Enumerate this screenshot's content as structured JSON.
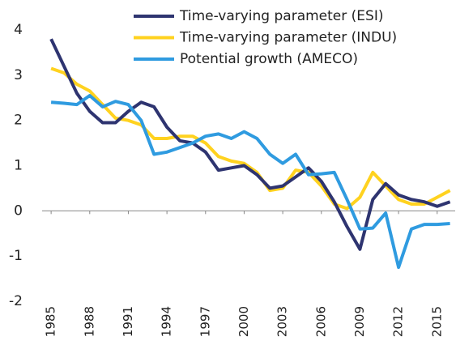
{
  "chart_data": {
    "type": "line",
    "x": [
      1985,
      1986,
      1987,
      1988,
      1989,
      1990,
      1991,
      1992,
      1993,
      1994,
      1995,
      1996,
      1997,
      1998,
      1999,
      2000,
      2001,
      2002,
      2003,
      2004,
      2005,
      2006,
      2007,
      2008,
      2009,
      2010,
      2011,
      2012,
      2013,
      2014,
      2015,
      2016
    ],
    "series": [
      {
        "name": "Time-varying parameter (ESI)",
        "color": "#2e3470",
        "values": [
          3.8,
          3.2,
          2.6,
          2.2,
          1.95,
          1.95,
          2.2,
          2.4,
          2.3,
          1.85,
          1.55,
          1.5,
          1.3,
          0.9,
          0.95,
          1.0,
          0.8,
          0.5,
          0.55,
          0.75,
          0.95,
          0.65,
          0.2,
          -0.35,
          -0.85,
          0.25,
          0.6,
          0.35,
          0.25,
          0.2,
          0.1,
          0.2
        ]
      },
      {
        "name": "Time-varying parameter (INDU)",
        "color": "#ffd21f",
        "values": [
          3.15,
          3.05,
          2.8,
          2.65,
          2.35,
          2.05,
          2.0,
          1.9,
          1.6,
          1.6,
          1.65,
          1.65,
          1.5,
          1.2,
          1.1,
          1.05,
          0.85,
          0.45,
          0.5,
          0.9,
          0.85,
          0.55,
          0.15,
          0.05,
          0.3,
          0.85,
          0.55,
          0.25,
          0.15,
          0.15,
          0.3,
          0.45
        ]
      },
      {
        "name": "Potential growth (AMECO)",
        "color": "#2f9be0",
        "values": [
          2.4,
          2.38,
          2.35,
          2.55,
          2.3,
          2.42,
          2.35,
          2.0,
          1.25,
          1.3,
          1.4,
          1.5,
          1.65,
          1.7,
          1.6,
          1.75,
          1.6,
          1.25,
          1.05,
          1.25,
          0.8,
          0.82,
          0.85,
          0.25,
          -0.4,
          -0.38,
          -0.05,
          -1.25,
          -0.4,
          -0.3,
          -0.3,
          -0.28
        ]
      }
    ],
    "xlim": [
      1984.3,
      2016.4
    ],
    "xticks": [
      1985,
      1988,
      1991,
      1994,
      1997,
      2000,
      2003,
      2006,
      2009,
      2012,
      2015
    ],
    "ylim": [
      -2,
      4
    ],
    "yticks": [
      -2,
      -1,
      0,
      1,
      2,
      3,
      4
    ],
    "legend": "top-right"
  }
}
